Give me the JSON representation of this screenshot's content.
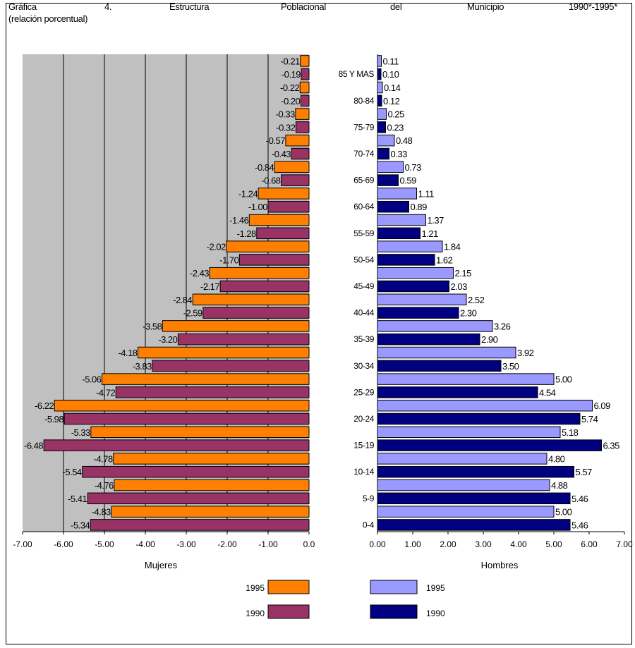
{
  "header": {
    "words": [
      "Gráfica",
      "4.",
      "Estructura",
      "Poblacional",
      "del",
      "Municipio",
      "1990*-1995*"
    ],
    "subtitle": "(relación porcentual)"
  },
  "colors": {
    "mujeres_1995": "#ff7f00",
    "mujeres_1990": "#993366",
    "hombres_1995": "#9999ff",
    "hombres_1990": "#000080",
    "plot_bg": "#c0c0c0"
  },
  "chart_data": [
    {
      "type": "bar",
      "orientation": "horizontal",
      "xlabel": "Mujeres",
      "xlim": [
        -7,
        0
      ],
      "xticks": [
        "-7.00",
        "-6.00",
        "-5.00",
        "-4.00",
        "-3.00",
        "-2.00",
        "-1.00",
        "0.0"
      ],
      "grid": true,
      "series": [
        {
          "name": "1995",
          "values": [
            -0.21,
            -0.22,
            -0.33,
            -0.57,
            -0.84,
            -1.24,
            -1.46,
            -2.02,
            -2.43,
            -2.84,
            -3.58,
            -4.18,
            -5.06,
            -6.22,
            -5.33,
            -4.78,
            -4.76,
            -4.83
          ],
          "labels": [
            "-0.21",
            "-0.22",
            "-0.33",
            "-0.57",
            "-0.84",
            "-1.24",
            "-1.46",
            "-2.02",
            "-2.43",
            "-2.84",
            "-3.58",
            "-4.18",
            "-5.06",
            "-6.22",
            "-5.33",
            "-4.78",
            "-4.76",
            "-4.83"
          ]
        },
        {
          "name": "1990",
          "values": [
            -0.19,
            -0.2,
            -0.32,
            -0.43,
            -0.68,
            -1.0,
            -1.28,
            -1.7,
            -2.17,
            -2.59,
            -3.2,
            -3.83,
            -4.72,
            -5.98,
            -6.48,
            -5.54,
            -5.41,
            -5.34
          ],
          "labels": [
            "-0.19",
            "-0.20",
            "-0.32",
            "-0.43",
            "-0.68",
            "-1.00",
            "-1.28",
            "-1.70",
            "-2.17",
            "-2.59",
            "-3.20",
            "-3.83",
            "-4.72",
            "-5.98",
            "-6.48",
            "-5.54",
            "-5.41",
            "-5.34"
          ]
        }
      ]
    },
    {
      "type": "bar",
      "orientation": "horizontal",
      "xlabel": "Hombres",
      "xlim": [
        0,
        7
      ],
      "xticks": [
        "0.00",
        "1.00",
        "2.00",
        "3.00",
        "4.00",
        "5.00",
        "6.00",
        "7.00"
      ],
      "categories": [
        "85 Y MAS",
        "80-84",
        "75-79",
        "70-74",
        "65-69",
        "60-64",
        "55-59",
        "50-54",
        "45-49",
        "40-44",
        "35-39",
        "30-34",
        "25-29",
        "20-24",
        "15-19",
        "10-14",
        "5-9",
        "0-4"
      ],
      "grid": false,
      "series": [
        {
          "name": "1995",
          "values": [
            0.11,
            0.14,
            0.25,
            0.48,
            0.73,
            1.11,
            1.37,
            1.84,
            2.15,
            2.52,
            3.26,
            3.92,
            5.0,
            6.09,
            5.18,
            4.8,
            4.88,
            5.0
          ],
          "labels": [
            "0.11",
            "0.14",
            "0.25",
            "0.48",
            "0.73",
            "1.11",
            "1.37",
            "1.84",
            "2.15",
            "2.52",
            "3.26",
            "3.92",
            "5.00",
            "6.09",
            "5.18",
            "4.80",
            "4.88",
            "5.00"
          ]
        },
        {
          "name": "1990",
          "values": [
            0.1,
            0.12,
            0.23,
            0.33,
            0.59,
            0.89,
            1.21,
            1.62,
            2.03,
            2.3,
            2.9,
            3.5,
            4.54,
            5.74,
            6.35,
            5.57,
            5.46,
            5.46
          ],
          "labels": [
            "0.10",
            "0.12",
            "0.23",
            "0.33",
            "0.59",
            "0.89",
            "1.21",
            "1.62",
            "2.03",
            "2.30",
            "2.90",
            "3.50",
            "4.54",
            "5.74",
            "6.35",
            "5.57",
            "5.46",
            "5.46"
          ]
        }
      ]
    }
  ],
  "legend": {
    "mujeres": [
      {
        "label": "1995"
      },
      {
        "label": "1990"
      }
    ],
    "hombres": [
      {
        "label": "1995"
      },
      {
        "label": "1990"
      }
    ]
  }
}
